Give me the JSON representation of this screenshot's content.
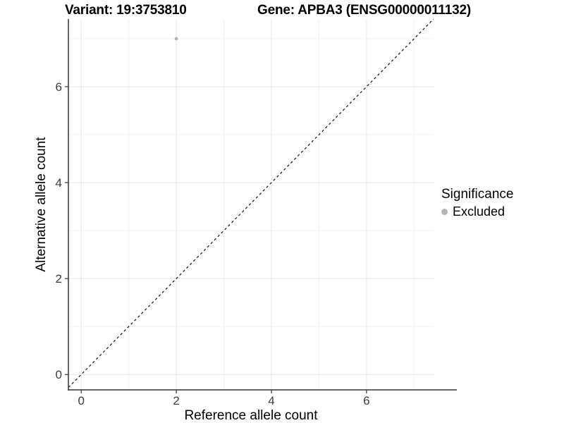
{
  "title": {
    "variant": "Variant: 19:3753810",
    "gene": "Gene: APBA3 (ENSG00000011132)"
  },
  "legend": {
    "title": "Significance",
    "items": [
      {
        "label": "Excluded",
        "color": "#b3b3b3"
      }
    ]
  },
  "chart_data": {
    "type": "scatter",
    "title": "Variant: 19:3753810   Gene: APBA3 (ENSG00000011132)",
    "xlabel": "Reference allele count",
    "ylabel": "Alternative allele count",
    "xlim": [
      -0.27,
      7.41
    ],
    "ylim": [
      -0.32,
      7.41
    ],
    "x_ticks": [
      0,
      2,
      4,
      6
    ],
    "y_ticks": [
      0,
      2,
      4,
      6
    ],
    "x_minor_ticks": [
      1,
      3,
      5,
      7
    ],
    "y_minor_ticks": [
      1,
      3,
      5,
      7
    ],
    "grid": true,
    "legend_position": "right",
    "legend_title": "Significance",
    "series": [
      {
        "name": "Excluded",
        "color": "#b3b3b3",
        "points": [
          {
            "x": 2,
            "y": 7
          }
        ]
      }
    ],
    "reference_line": {
      "slope": 1,
      "intercept": 0,
      "style": "dashed",
      "color": "#111111"
    }
  },
  "colors": {
    "background": "#ffffff",
    "grid_major": "#e6e6e6",
    "grid_minor": "#f0f0f0",
    "axis_line": "#333333",
    "tick_text": "#3d3d3d",
    "point": "#b3b3b3"
  }
}
